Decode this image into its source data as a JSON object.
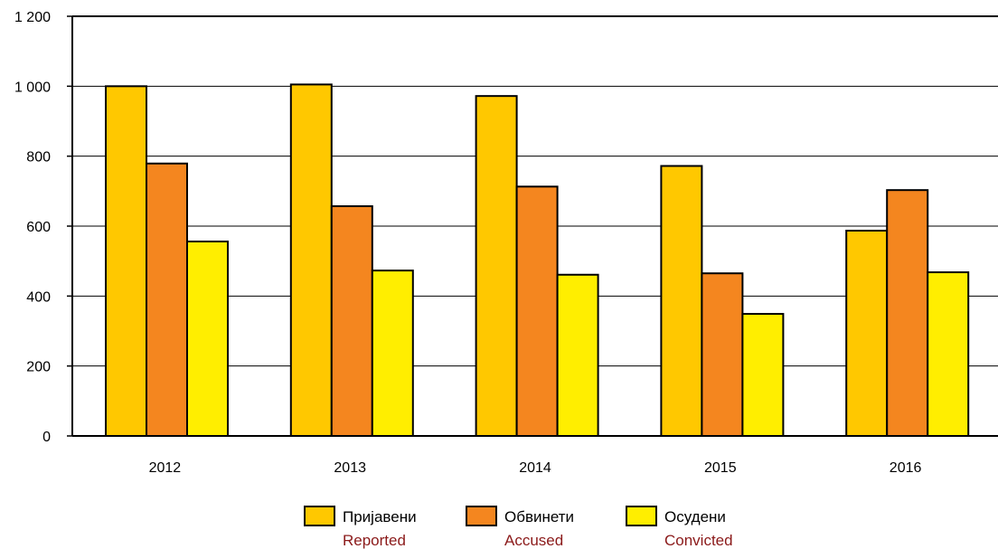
{
  "chart_data": {
    "type": "bar",
    "categories": [
      "2012",
      "2013",
      "2014",
      "2015",
      "2016"
    ],
    "series": [
      {
        "name": "Пријавени",
        "name_en": "Reported",
        "color": "#FFC800",
        "values": [
          1000,
          1005,
          972,
          772,
          587
        ]
      },
      {
        "name": "Обвинети",
        "name_en": "Accused",
        "color": "#F4861F",
        "values": [
          779,
          657,
          713,
          465,
          703
        ]
      },
      {
        "name": "Осудени",
        "name_en": "Convicted",
        "color": "#FFEE00",
        "values": [
          556,
          473,
          461,
          349,
          468
        ]
      }
    ],
    "y_ticks": [
      "0",
      "200",
      "400",
      "600",
      "800",
      "1 000",
      "1 200"
    ],
    "y_tick_values": [
      0,
      200,
      400,
      600,
      800,
      1000,
      1200
    ],
    "ylim": [
      0,
      1200
    ],
    "grid": true,
    "legend_position": "bottom",
    "legend_sub_color": "#8B1A1A"
  }
}
